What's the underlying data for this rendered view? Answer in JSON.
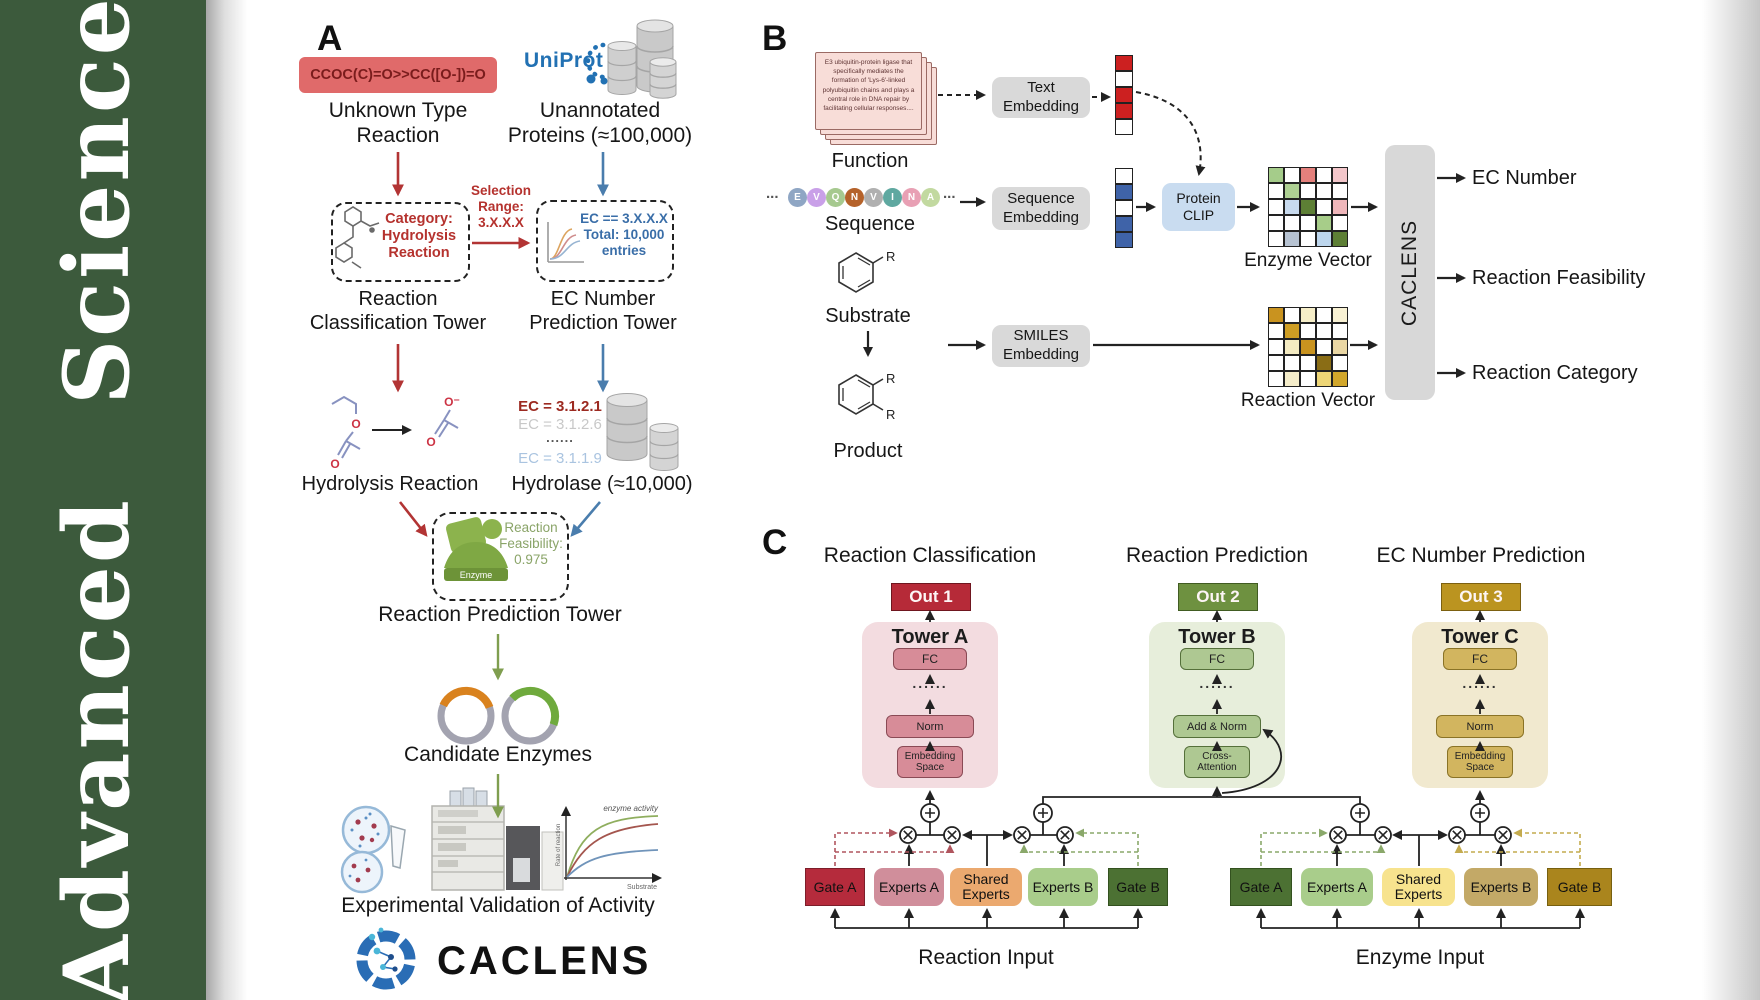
{
  "journal": {
    "sidebar_text": "Advanced Science"
  },
  "panelA": {
    "label": "A",
    "smiles": "CCOC(C)=O>>CC([O-])=O",
    "unknown_reaction": [
      "Unknown Type",
      "Reaction"
    ],
    "uniprot": "UniProt",
    "unannotated": [
      "Unannotated",
      "Proteins (≈100,000)"
    ],
    "classification_box": [
      "Category:",
      "Hydrolysis",
      "Reaction"
    ],
    "selection_label": [
      "Selection",
      "Range:",
      "3.X.X.X"
    ],
    "ec_box": [
      "EC == 3.X.X.X",
      "Total: 10,000",
      "entries"
    ],
    "tower1": [
      "Reaction",
      "Classification Tower"
    ],
    "tower2": [
      "EC Number",
      "Prediction Tower"
    ],
    "hydrolysis_label": "Hydrolysis Reaction",
    "ec_list": [
      "EC = 3.1.2.1",
      "EC = 3.1.2.6",
      "......",
      "EC = 3.1.1.9"
    ],
    "hydrolase_label": "Hydrolase (≈10,000)",
    "enzyme_icon_label": "Enzyme",
    "feasibility": [
      "Reaction",
      "Feasibility:",
      "0.975"
    ],
    "tower3": "Reaction Prediction Tower",
    "candidate_label": "Candidate Enzymes",
    "activity_plot": {
      "curve_label": "enzyme activity",
      "ylabel": "Rate of reaction",
      "xlabel": "Substrate"
    },
    "validation_label": "Experimental Validation of Activity",
    "logo_text": "CACLENS"
  },
  "panelB": {
    "label": "B",
    "function_card_text": "E3 ubiquitin-protein ligase that specifically mediates the formation of 'Lys-6'-linked polyubiquitin chains and plays a central role in DNA repair by facilitating cellular responses....",
    "function_label": "Function",
    "ellipsis": "...",
    "residues": [
      {
        "letter": "E",
        "color": "#8fa6c4"
      },
      {
        "letter": "V",
        "color": "#c9a0e8"
      },
      {
        "letter": "Q",
        "color": "#a6c98f"
      },
      {
        "letter": "N",
        "color": "#b5622a"
      },
      {
        "letter": "V",
        "color": "#b0b0b0"
      },
      {
        "letter": "I",
        "color": "#5fa8a0"
      },
      {
        "letter": "N",
        "color": "#e8a0b4"
      },
      {
        "letter": "A",
        "color": "#c2d9a0"
      }
    ],
    "sequence_label": "Sequence",
    "substrate_label": "Substrate",
    "product_label": "Product",
    "r_label": "R",
    "text_embedding": [
      "Text",
      "Embedding"
    ],
    "sequence_embedding": [
      "Sequence",
      "Embedding"
    ],
    "smiles_embedding": [
      "SMILES",
      "Embedding"
    ],
    "protein_clip": [
      "Protein",
      "CLIP"
    ],
    "text_vector_cells": [
      "#cc2020",
      "#ffffff",
      "#cc2020",
      "#cc2020",
      "#ffffff"
    ],
    "sequence_vector_cells": [
      "#ffffff",
      "#3f63a8",
      "#ffffff",
      "#3f63a8",
      "#3f63a8"
    ],
    "enzyme_vector_label": "Enzyme Vector",
    "enzyme_vector_cells": [
      "#a5cc8a",
      "#ffffff",
      "#e4807c",
      "#ffffff",
      "#f3c6ca",
      "#ffffff",
      "#aed093",
      "#ffffff",
      "#ffffff",
      "#ffffff",
      "#ffffff",
      "#c8daee",
      "#5d7f35",
      "#ffffff",
      "#efb6ba",
      "#ffffff",
      "#ffffff",
      "#ffffff",
      "#a7cd89",
      "#ffffff",
      "#ffffff",
      "#b7c3d2",
      "#ffffff",
      "#bdd6ed",
      "#5d7f35"
    ],
    "reaction_vector_label": "Reaction Vector",
    "reaction_vector_cells": [
      "#c9931f",
      "#ffffff",
      "#f6eec8",
      "#ffffff",
      "#f8f1d3",
      "#ffffff",
      "#cf9e24",
      "#ffffff",
      "#ffffff",
      "#ffffff",
      "#ffffff",
      "#f4ebc2",
      "#c9931f",
      "#ffffff",
      "#ead7a4",
      "#ffffff",
      "#ffffff",
      "#ffffff",
      "#8a6d15",
      "#ffffff",
      "#ffffff",
      "#f5edca",
      "#ffffff",
      "#eed676",
      "#d2a72b"
    ],
    "caclens_label": "CACLENS",
    "outputs": [
      "EC Number",
      "Reaction Feasibility",
      "Reaction Category"
    ]
  },
  "panelC": {
    "label": "C",
    "columns": [
      {
        "title": "Reaction Classification",
        "out": "Out 1",
        "tower": "Tower A",
        "blocks": [
          "FC",
          "......",
          "Norm",
          "Embedding Space"
        ]
      },
      {
        "title": "Reaction Prediction",
        "out": "Out 2",
        "tower": "Tower B",
        "blocks": [
          "FC",
          "......",
          "Add & Norm",
          "Cross-Attention"
        ]
      },
      {
        "title": "EC Number Prediction",
        "out": "Out 3",
        "tower": "Tower C",
        "blocks": [
          "FC",
          "......",
          "Norm",
          "Embedding Space"
        ]
      }
    ],
    "moe_left": {
      "boxes": [
        "Gate A",
        "Experts A",
        "Shared Experts",
        "Experts B",
        "Gate B"
      ],
      "input_label": "Reaction Input"
    },
    "moe_right": {
      "boxes": [
        "Gate A",
        "Experts A",
        "Shared Experts",
        "Experts B",
        "Gate B"
      ],
      "input_label": "Enzyme Input"
    }
  },
  "colors": {
    "sidebar_green": "#3c5a3c",
    "red_accent": "#b23434",
    "blue_accent": "#4a7dad",
    "green_accent": "#7f9e4f",
    "uniprot_blue": "#2271b3",
    "out1": "#b62a38",
    "out2": "#6e9140",
    "out3": "#bb9420"
  }
}
